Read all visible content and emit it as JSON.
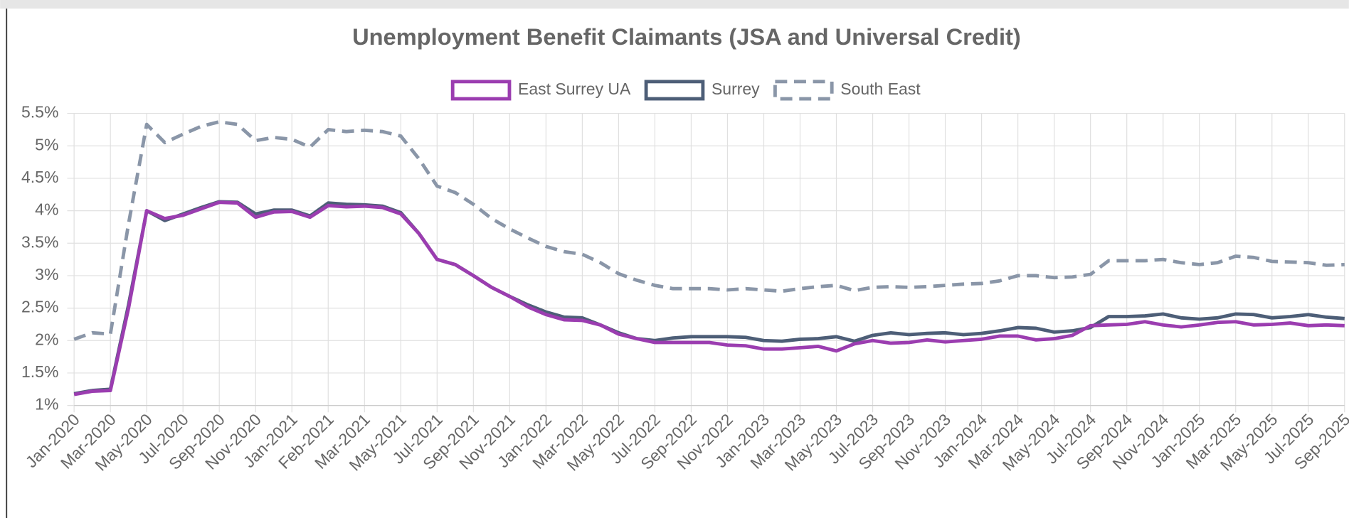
{
  "chart_data": {
    "type": "line",
    "title": "Unemployment Benefit Claimants (JSA and Universal Credit)",
    "categories": [
      "Jan-2020",
      null,
      "Mar-2020",
      null,
      "May-2020",
      null,
      "Jul-2020",
      null,
      "Sep-2020",
      null,
      "Nov-2020",
      null,
      "Jan-2021",
      null,
      "Feb-2021",
      null,
      "Mar-2021",
      null,
      "May-2021",
      null,
      "Jul-2021",
      null,
      "Sep-2021",
      null,
      "Nov-2021",
      null,
      "Jan-2022",
      null,
      "Mar-2022",
      null,
      "May-2022",
      null,
      "Jul-2022",
      null,
      "Sep-2022",
      null,
      "Nov-2022",
      null,
      "Jan-2023",
      null,
      "Mar-2023",
      null,
      "May-2023",
      null,
      "Jul-2023",
      null,
      "Sep-2023",
      null,
      "Nov-2023",
      null,
      "Jan-2024",
      null,
      "Mar-2024",
      null,
      "May-2024",
      null,
      "Jul-2024",
      null,
      "Sep-2024",
      null,
      "Nov-2024",
      null,
      "Jan-2025",
      null,
      "Mar-2025",
      null,
      "May-2025",
      null,
      "Jul-2025",
      null,
      "Sep-2025"
    ],
    "series": [
      {
        "name": "East Surrey UA",
        "color": "#9b3db0",
        "dashed": false,
        "values": [
          1.17,
          1.22,
          1.23,
          2.5,
          4.0,
          3.88,
          3.93,
          4.03,
          4.13,
          4.12,
          3.9,
          3.98,
          3.99,
          3.9,
          4.08,
          4.06,
          4.07,
          4.05,
          3.95,
          3.65,
          3.25,
          3.17,
          3.0,
          2.82,
          2.68,
          2.52,
          2.4,
          2.32,
          2.31,
          2.24,
          2.1,
          2.03,
          1.97,
          1.97,
          1.97,
          1.97,
          1.93,
          1.92,
          1.87,
          1.87,
          1.89,
          1.91,
          1.84,
          1.95,
          2.0,
          1.96,
          1.97,
          2.01,
          1.98,
          2.0,
          2.02,
          2.07,
          2.07,
          2.01,
          2.03,
          2.08,
          2.23,
          2.24,
          2.25,
          2.29,
          2.24,
          2.21,
          2.24,
          2.28,
          2.29,
          2.24,
          2.25,
          2.27,
          2.23,
          2.24,
          2.23
        ]
      },
      {
        "name": "Surrey",
        "color": "#4d5e77",
        "dashed": false,
        "values": [
          1.18,
          1.23,
          1.25,
          2.55,
          4.0,
          3.85,
          3.95,
          4.05,
          4.14,
          4.13,
          3.95,
          4.01,
          4.01,
          3.92,
          4.12,
          4.1,
          4.09,
          4.07,
          3.97,
          3.65,
          3.25,
          3.17,
          3.0,
          2.82,
          2.68,
          2.55,
          2.44,
          2.36,
          2.35,
          2.24,
          2.12,
          2.03,
          2.0,
          2.04,
          2.06,
          2.06,
          2.06,
          2.05,
          2.0,
          1.99,
          2.02,
          2.03,
          2.06,
          1.99,
          2.08,
          2.12,
          2.09,
          2.11,
          2.12,
          2.09,
          2.11,
          2.15,
          2.2,
          2.19,
          2.13,
          2.15,
          2.2,
          2.37,
          2.37,
          2.38,
          2.41,
          2.35,
          2.33,
          2.35,
          2.41,
          2.4,
          2.35,
          2.37,
          2.4,
          2.36,
          2.34
        ]
      },
      {
        "name": "South East",
        "color": "#8a96a8",
        "dashed": true,
        "values": [
          2.02,
          2.12,
          2.1,
          3.8,
          5.33,
          5.05,
          5.18,
          5.3,
          5.37,
          5.33,
          5.08,
          5.13,
          5.1,
          4.98,
          5.25,
          5.22,
          5.24,
          5.22,
          5.15,
          4.8,
          4.38,
          4.28,
          4.1,
          3.88,
          3.72,
          3.58,
          3.45,
          3.37,
          3.33,
          3.2,
          3.03,
          2.93,
          2.85,
          2.8,
          2.8,
          2.8,
          2.78,
          2.8,
          2.78,
          2.76,
          2.8,
          2.83,
          2.85,
          2.77,
          2.82,
          2.83,
          2.82,
          2.83,
          2.85,
          2.87,
          2.88,
          2.92,
          3.0,
          3.0,
          2.97,
          2.98,
          3.02,
          3.23,
          3.23,
          3.23,
          3.25,
          3.2,
          3.17,
          3.2,
          3.3,
          3.28,
          3.22,
          3.21,
          3.2,
          3.16,
          3.17
        ]
      }
    ],
    "ylim": [
      1,
      5.5
    ],
    "yticks": [
      {
        "value": 1,
        "label": "1%"
      },
      {
        "value": 1.5,
        "label": "1.5%"
      },
      {
        "value": 2,
        "label": "2%"
      },
      {
        "value": 2.5,
        "label": "2.5%"
      },
      {
        "value": 3,
        "label": "3%"
      },
      {
        "value": 3.5,
        "label": "3.5%"
      },
      {
        "value": 4,
        "label": "4%"
      },
      {
        "value": 4.5,
        "label": "4.5%"
      },
      {
        "value": 5,
        "label": "5%"
      },
      {
        "value": 5.5,
        "label": "5.5%"
      }
    ],
    "grid": true,
    "legend": "top"
  }
}
